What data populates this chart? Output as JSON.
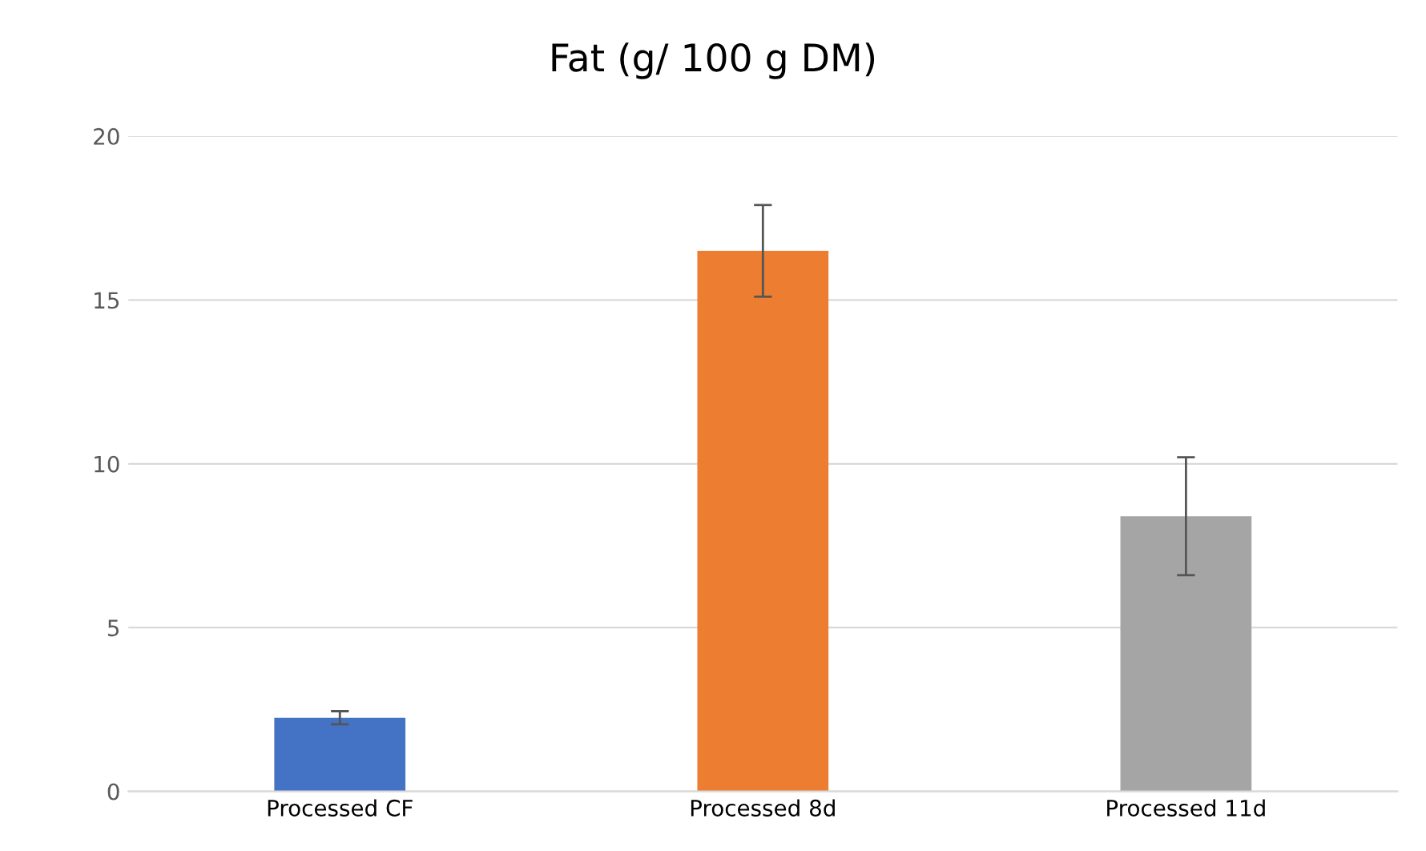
{
  "chart_data": {
    "type": "bar",
    "title": "Fat (g/ 100 g DM)",
    "categories": [
      "Processed CF",
      "Processed 8d",
      "Processed 11d"
    ],
    "values": [
      2.25,
      16.5,
      8.4
    ],
    "errors": [
      0.2,
      1.4,
      1.8
    ],
    "colors": [
      "#4472c4",
      "#ed7d31",
      "#a5a5a5"
    ],
    "ylim": [
      0,
      20
    ],
    "yticks": [
      0,
      5,
      10,
      15,
      20
    ],
    "grid": "y"
  }
}
